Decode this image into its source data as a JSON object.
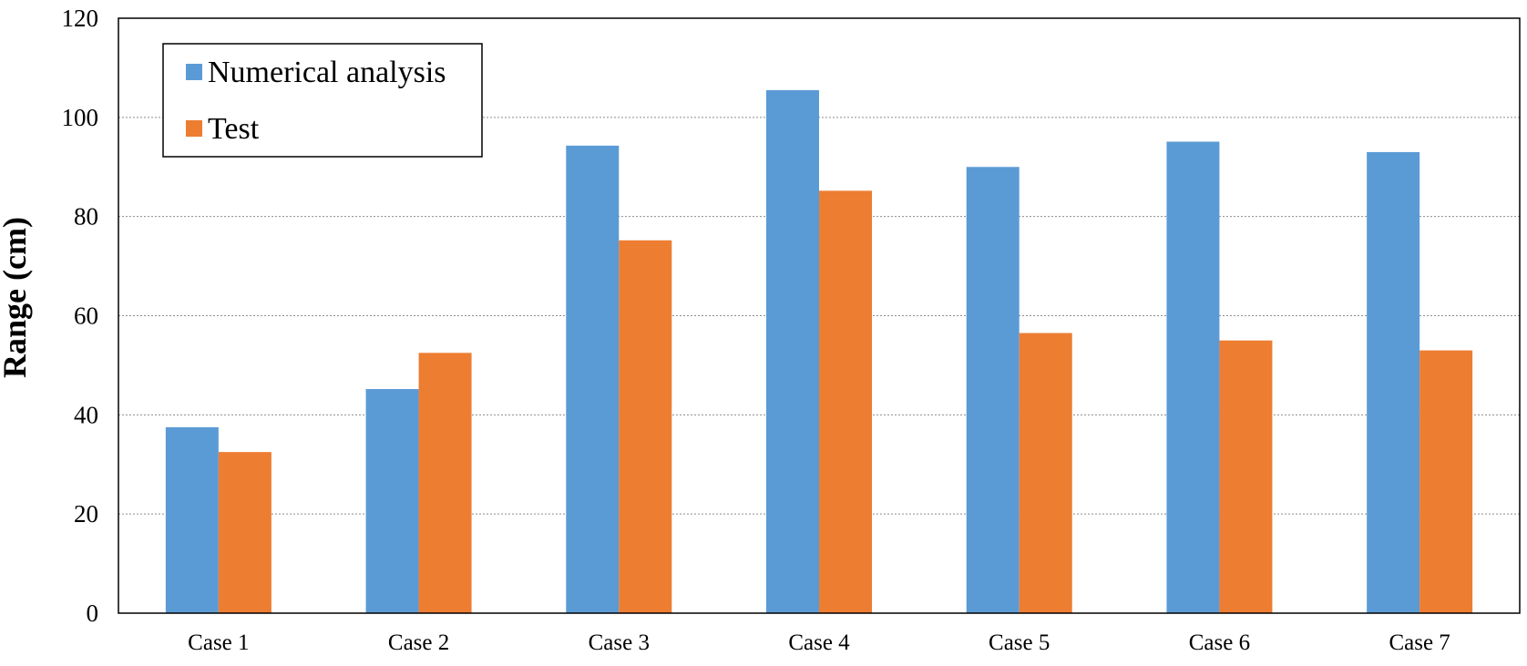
{
  "chart_data": {
    "type": "bar",
    "title": "",
    "xlabel": "",
    "ylabel": "Range (cm)",
    "categories": [
      "Case 1",
      "Case 2",
      "Case 3",
      "Case 4",
      "Case 5",
      "Case 6",
      "Case 7"
    ],
    "series": [
      {
        "name": "Numerical analysis",
        "color": "#5b9bd5",
        "values": [
          37.5,
          45.2,
          94.3,
          105.5,
          90.0,
          95.1,
          93.0
        ]
      },
      {
        "name": "Test",
        "color": "#ed7d31",
        "values": [
          32.5,
          52.5,
          75.2,
          85.2,
          56.5,
          55.0,
          53.0
        ]
      }
    ],
    "ylim": [
      0,
      120
    ],
    "yticks": [
      0,
      20,
      40,
      60,
      80,
      100,
      120
    ],
    "grid": true,
    "legend_position": "top-left"
  }
}
